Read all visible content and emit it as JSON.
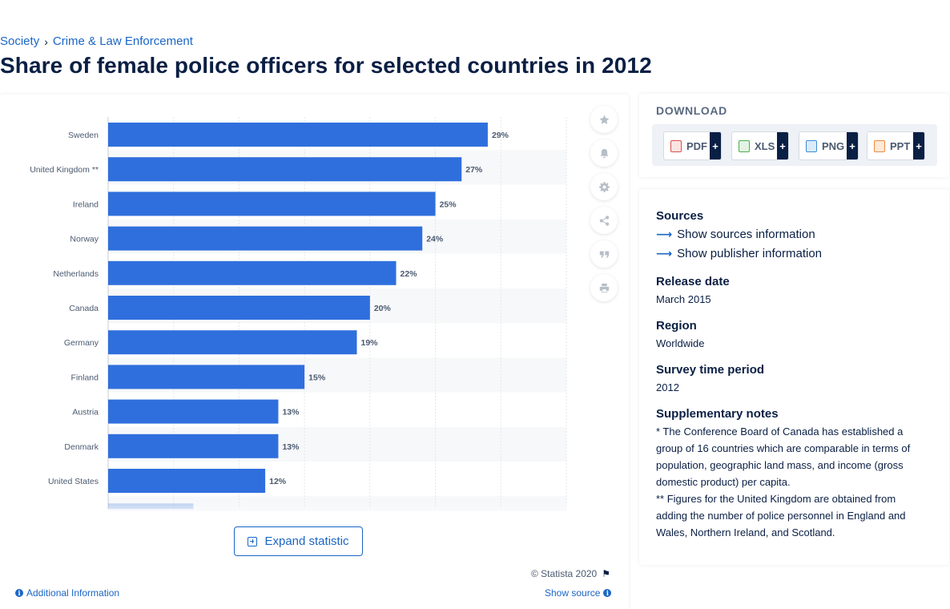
{
  "breadcrumb": {
    "items": [
      "Society",
      "Crime & Law Enforcement"
    ],
    "separator": "›"
  },
  "page_title": "Share of female police officers for selected countries in 2012",
  "chart_data": {
    "type": "bar",
    "orientation": "horizontal",
    "categories": [
      "Sweden",
      "United Kingdom **",
      "Ireland",
      "Norway",
      "Netherlands",
      "Canada",
      "Germany",
      "Finland",
      "Austria",
      "Denmark",
      "United States"
    ],
    "values": [
      29,
      27,
      25,
      24,
      22,
      20,
      19,
      15,
      13,
      13,
      12
    ],
    "value_labels": [
      "29%",
      "27%",
      "25%",
      "24%",
      "22%",
      "20%",
      "19%",
      "15%",
      "13%",
      "13%",
      "12%"
    ],
    "partial_next_value": 7,
    "xlim": [
      0,
      35
    ],
    "gridlines": [
      5,
      10,
      15,
      20,
      25,
      30,
      35
    ],
    "bar_color": "#2f6fdd",
    "grid": true,
    "title": "",
    "xlabel": "",
    "ylabel": ""
  },
  "toolbar": {
    "icons": [
      "star-icon",
      "bell-icon",
      "gear-icon",
      "share-icon",
      "quote-icon",
      "print-icon"
    ]
  },
  "expand": {
    "label": "Expand statistic"
  },
  "footer": {
    "copyright": "© Statista 2020",
    "additional_info": "Additional Information",
    "show_source": "Show source"
  },
  "download": {
    "title": "DOWNLOAD",
    "formats": [
      {
        "label": "PDF",
        "color": "#d9534f"
      },
      {
        "label": "XLS",
        "color": "#4caf50"
      },
      {
        "label": "PNG",
        "color": "#3d8bd9"
      },
      {
        "label": "PPT",
        "color": "#f0883e"
      }
    ],
    "plus": "+"
  },
  "info": {
    "sources_title": "Sources",
    "show_sources": "Show sources information",
    "show_publisher": "Show publisher information",
    "release_title": "Release date",
    "release_value": "March 2015",
    "region_title": "Region",
    "region_value": "Worldwide",
    "survey_title": "Survey time period",
    "survey_value": "2012",
    "notes_title": "Supplementary notes",
    "note_1": "* The Conference Board of Canada has established a group of 16 countries which are comparable in terms of population, geographic land mass, and income (gross domestic product) per capita.",
    "note_2": "** Figures for the United Kingdom are obtained from adding the number of police personnel in England and Wales, Northern Ireland, and Scotland."
  }
}
